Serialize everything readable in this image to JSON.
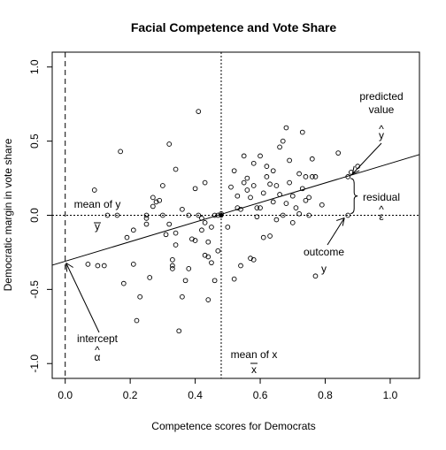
{
  "chart_data": {
    "type": "scatter",
    "title": "Facial Competence and Vote Share",
    "xlabel": "Competence scores for Democrats",
    "ylabel": "Democratic margin in vote share",
    "xlim": [
      -0.04,
      1.09
    ],
    "ylim": [
      -1.1,
      1.1
    ],
    "x_ticks": [
      0.0,
      0.2,
      0.4,
      0.6,
      0.8,
      1.0
    ],
    "x_tick_labels": [
      "0.0",
      "0.2",
      "0.4",
      "0.6",
      "0.8",
      "1.0"
    ],
    "y_ticks": [
      -1.0,
      -0.5,
      0.0,
      0.5,
      1.0
    ],
    "y_tick_labels": [
      "-1.0",
      "-0.5",
      "0.0",
      "0.5",
      "1.0"
    ],
    "grid": false,
    "x_mean": 0.48,
    "y_mean": 0.0,
    "regression": {
      "intercept": -0.31,
      "slope": 0.66
    },
    "highlight": {
      "x": 0.87,
      "y": 0.0,
      "yhat": 0.26
    },
    "annotations": {
      "mean_y": "mean of y",
      "ybar": "y",
      "mean_x": "mean of x",
      "xbar": "x",
      "predicted": "predicted",
      "value": "value",
      "yhat": "y",
      "hat": "^",
      "residual": "residual",
      "epsilon": "ε",
      "outcome": "outcome",
      "y": "y",
      "intercept": "intercept",
      "alpha": "α"
    },
    "points": [
      [
        0.07,
        -0.33
      ],
      [
        0.09,
        0.17
      ],
      [
        0.1,
        -0.34
      ],
      [
        0.12,
        -0.34
      ],
      [
        0.13,
        0.0
      ],
      [
        0.16,
        0.0
      ],
      [
        0.17,
        0.43
      ],
      [
        0.18,
        -0.46
      ],
      [
        0.19,
        -0.15
      ],
      [
        0.21,
        -0.33
      ],
      [
        0.21,
        -0.1
      ],
      [
        0.22,
        -0.71
      ],
      [
        0.23,
        -0.55
      ],
      [
        0.25,
        -0.06
      ],
      [
        0.25,
        -0.02
      ],
      [
        0.25,
        0.0
      ],
      [
        0.26,
        -0.42
      ],
      [
        0.27,
        0.06
      ],
      [
        0.27,
        0.12
      ],
      [
        0.28,
        0.09
      ],
      [
        0.29,
        0.1
      ],
      [
        0.3,
        0.0
      ],
      [
        0.3,
        0.2
      ],
      [
        0.31,
        -0.13
      ],
      [
        0.32,
        -0.06
      ],
      [
        0.32,
        0.48
      ],
      [
        0.33,
        -0.3
      ],
      [
        0.33,
        -0.34
      ],
      [
        0.33,
        -0.36
      ],
      [
        0.34,
        -0.2
      ],
      [
        0.34,
        -0.12
      ],
      [
        0.34,
        0.31
      ],
      [
        0.35,
        -0.78
      ],
      [
        0.36,
        0.04
      ],
      [
        0.36,
        -0.55
      ],
      [
        0.37,
        -0.44
      ],
      [
        0.38,
        -0.36
      ],
      [
        0.38,
        0.0
      ],
      [
        0.39,
        -0.16
      ],
      [
        0.4,
        -0.17
      ],
      [
        0.4,
        0.18
      ],
      [
        0.41,
        0.0
      ],
      [
        0.41,
        0.7
      ],
      [
        0.42,
        -0.02
      ],
      [
        0.42,
        -0.1
      ],
      [
        0.43,
        -0.27
      ],
      [
        0.43,
        -0.05
      ],
      [
        0.43,
        0.22
      ],
      [
        0.44,
        -0.28
      ],
      [
        0.44,
        -0.18
      ],
      [
        0.44,
        -0.57
      ],
      [
        0.45,
        -0.32
      ],
      [
        0.45,
        -0.08
      ],
      [
        0.46,
        -0.44
      ],
      [
        0.46,
        0.0
      ],
      [
        0.47,
        -0.24
      ],
      [
        0.47,
        0.0
      ],
      [
        0.48,
        0.01
      ],
      [
        0.5,
        -0.08
      ],
      [
        0.51,
        0.19
      ],
      [
        0.52,
        0.3
      ],
      [
        0.52,
        -0.43
      ],
      [
        0.53,
        0.05
      ],
      [
        0.53,
        0.13
      ],
      [
        0.54,
        -0.34
      ],
      [
        0.54,
        0.04
      ],
      [
        0.55,
        0.22
      ],
      [
        0.55,
        0.4
      ],
      [
        0.56,
        0.25
      ],
      [
        0.56,
        0.17
      ],
      [
        0.57,
        -0.29
      ],
      [
        0.57,
        0.12
      ],
      [
        0.58,
        0.2
      ],
      [
        0.58,
        -0.3
      ],
      [
        0.58,
        0.35
      ],
      [
        0.59,
        0.05
      ],
      [
        0.59,
        -0.01
      ],
      [
        0.6,
        0.4
      ],
      [
        0.6,
        0.05
      ],
      [
        0.61,
        0.15
      ],
      [
        0.61,
        -0.15
      ],
      [
        0.62,
        0.26
      ],
      [
        0.62,
        0.33
      ],
      [
        0.63,
        0.21
      ],
      [
        0.63,
        -0.14
      ],
      [
        0.64,
        0.09
      ],
      [
        0.64,
        0.3
      ],
      [
        0.65,
        0.2
      ],
      [
        0.65,
        -0.03
      ],
      [
        0.66,
        0.46
      ],
      [
        0.66,
        0.14
      ],
      [
        0.67,
        0.0
      ],
      [
        0.67,
        0.5
      ],
      [
        0.68,
        0.59
      ],
      [
        0.68,
        0.08
      ],
      [
        0.69,
        0.37
      ],
      [
        0.69,
        0.22
      ],
      [
        0.7,
        -0.05
      ],
      [
        0.7,
        0.13
      ],
      [
        0.71,
        0.05
      ],
      [
        0.72,
        0.28
      ],
      [
        0.72,
        0.01
      ],
      [
        0.73,
        0.56
      ],
      [
        0.73,
        0.18
      ],
      [
        0.74,
        0.1
      ],
      [
        0.74,
        0.26
      ],
      [
        0.75,
        0.0
      ],
      [
        0.75,
        0.12
      ],
      [
        0.76,
        0.26
      ],
      [
        0.76,
        0.38
      ],
      [
        0.77,
        0.26
      ],
      [
        0.77,
        -0.41
      ],
      [
        0.79,
        0.07
      ],
      [
        0.84,
        0.42
      ],
      [
        0.88,
        0.29
      ],
      [
        0.9,
        0.33
      ]
    ]
  }
}
